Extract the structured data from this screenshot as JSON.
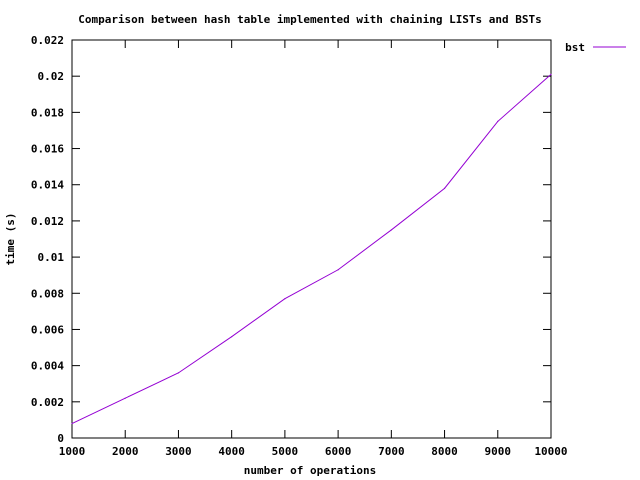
{
  "chart_data": {
    "type": "line",
    "title": "Comparison between hash table implemented with chaining LISTs and BSTs",
    "xlabel": "number of operations",
    "ylabel": "time (s)",
    "xlim": [
      1000,
      10000
    ],
    "ylim": [
      0,
      0.022
    ],
    "x_ticks": [
      1000,
      2000,
      3000,
      4000,
      5000,
      6000,
      7000,
      8000,
      9000,
      10000
    ],
    "x_tick_labels": [
      "1000",
      "2000",
      "3000",
      "4000",
      "5000",
      "6000",
      "7000",
      "8000",
      "9000",
      "10000"
    ],
    "y_ticks": [
      0,
      0.002,
      0.004,
      0.006,
      0.008,
      0.01,
      0.012,
      0.014,
      0.016,
      0.018,
      0.02,
      0.022
    ],
    "y_tick_labels": [
      "0",
      "0.002",
      "0.004",
      "0.006",
      "0.008",
      "0.01",
      "0.012",
      "0.014",
      "0.016",
      "0.018",
      "0.02",
      "0.022"
    ],
    "grid": false,
    "legend_position": "top-right",
    "series": [
      {
        "name": "bst",
        "color": "#9400d3",
        "x": [
          1000,
          2000,
          3000,
          4000,
          5000,
          6000,
          7000,
          8000,
          9000,
          10000
        ],
        "y": [
          0.0008,
          0.0022,
          0.0036,
          0.0056,
          0.0077,
          0.0093,
          0.0115,
          0.0138,
          0.0175,
          0.0201
        ]
      }
    ]
  }
}
